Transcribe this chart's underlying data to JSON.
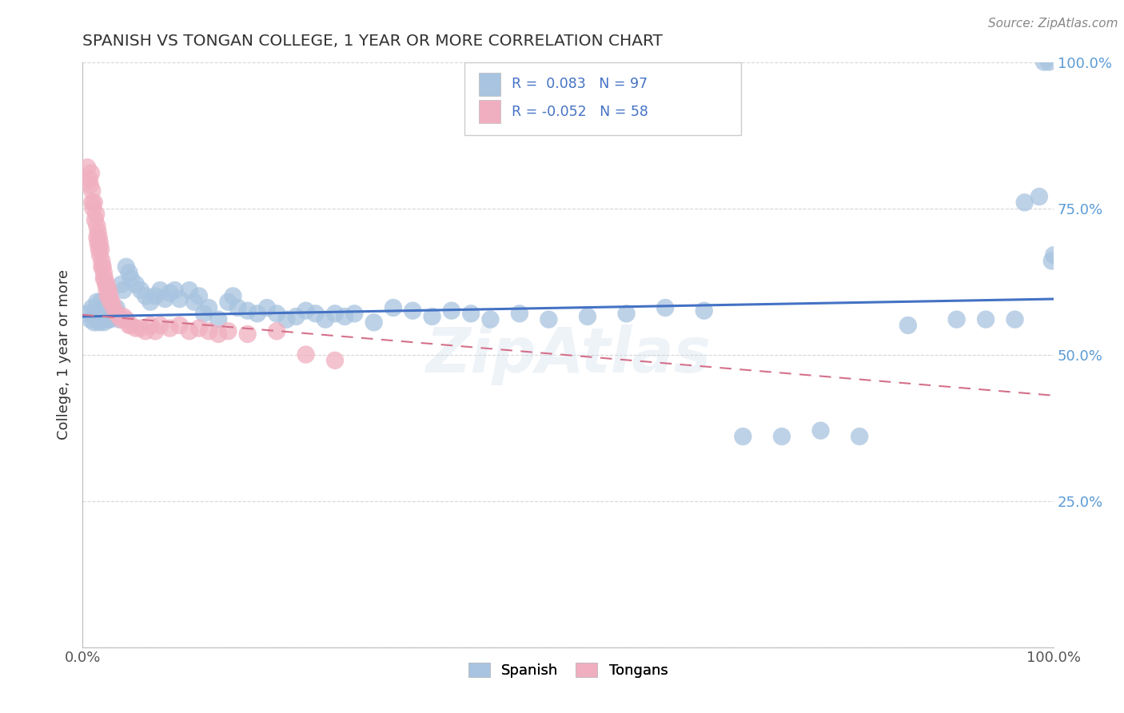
{
  "title": "SPANISH VS TONGAN COLLEGE, 1 YEAR OR MORE CORRELATION CHART",
  "source": "Source: ZipAtlas.com",
  "ylabel": "College, 1 year or more",
  "xlim": [
    0.0,
    1.0
  ],
  "ylim": [
    0.0,
    1.0
  ],
  "legend_R_spanish": "0.083",
  "legend_N_spanish": "97",
  "legend_R_tongan": "-0.052",
  "legend_N_tongan": "58",
  "spanish_color": "#a8c4e0",
  "tongan_color": "#f0afc0",
  "spanish_line_color": "#4472c4",
  "tongan_line_color": "#d4708a",
  "watermark": "ZipAtlas",
  "background_color": "#ffffff",
  "grid_color": "#cccccc",
  "tick_color": "#5b9bd5",
  "sp_line_y0": 0.565,
  "sp_line_y1": 0.595,
  "ton_line_y0": 0.568,
  "ton_line_y1": 0.43,
  "spanish_x": [
    0.005,
    0.008,
    0.01,
    0.012,
    0.013,
    0.014,
    0.015,
    0.015,
    0.016,
    0.017,
    0.018,
    0.018,
    0.019,
    0.02,
    0.02,
    0.021,
    0.022,
    0.022,
    0.023,
    0.024,
    0.025,
    0.025,
    0.026,
    0.027,
    0.028,
    0.028,
    0.029,
    0.03,
    0.031,
    0.032,
    0.033,
    0.035,
    0.036,
    0.038,
    0.04,
    0.042,
    0.045,
    0.048,
    0.05,
    0.055,
    0.06,
    0.065,
    0.07,
    0.075,
    0.08,
    0.085,
    0.09,
    0.095,
    0.1,
    0.11,
    0.115,
    0.12,
    0.125,
    0.13,
    0.14,
    0.15,
    0.155,
    0.16,
    0.17,
    0.18,
    0.19,
    0.2,
    0.21,
    0.22,
    0.23,
    0.24,
    0.25,
    0.26,
    0.27,
    0.28,
    0.3,
    0.32,
    0.34,
    0.36,
    0.38,
    0.4,
    0.42,
    0.45,
    0.48,
    0.52,
    0.56,
    0.6,
    0.64,
    0.68,
    0.72,
    0.76,
    0.8,
    0.85,
    0.9,
    0.93,
    0.96,
    0.97,
    0.985,
    0.99,
    0.995,
    0.998,
    1.0
  ],
  "spanish_y": [
    0.57,
    0.56,
    0.58,
    0.555,
    0.565,
    0.575,
    0.59,
    0.56,
    0.57,
    0.555,
    0.58,
    0.56,
    0.59,
    0.56,
    0.575,
    0.56,
    0.57,
    0.555,
    0.56,
    0.57,
    0.56,
    0.58,
    0.57,
    0.56,
    0.575,
    0.56,
    0.58,
    0.575,
    0.57,
    0.565,
    0.575,
    0.58,
    0.57,
    0.56,
    0.62,
    0.61,
    0.65,
    0.64,
    0.63,
    0.62,
    0.61,
    0.6,
    0.59,
    0.6,
    0.61,
    0.595,
    0.605,
    0.61,
    0.595,
    0.61,
    0.59,
    0.6,
    0.57,
    0.58,
    0.56,
    0.59,
    0.6,
    0.58,
    0.575,
    0.57,
    0.58,
    0.57,
    0.56,
    0.565,
    0.575,
    0.57,
    0.56,
    0.57,
    0.565,
    0.57,
    0.555,
    0.58,
    0.575,
    0.565,
    0.575,
    0.57,
    0.56,
    0.57,
    0.56,
    0.565,
    0.57,
    0.58,
    0.575,
    0.36,
    0.36,
    0.37,
    0.36,
    0.55,
    0.56,
    0.56,
    0.56,
    0.76,
    0.77,
    1.0,
    1.0,
    0.66,
    0.67
  ],
  "tongan_x": [
    0.005,
    0.007,
    0.008,
    0.009,
    0.01,
    0.01,
    0.011,
    0.012,
    0.013,
    0.014,
    0.015,
    0.015,
    0.016,
    0.016,
    0.017,
    0.017,
    0.018,
    0.018,
    0.019,
    0.02,
    0.02,
    0.021,
    0.022,
    0.022,
    0.023,
    0.024,
    0.025,
    0.025,
    0.026,
    0.027,
    0.028,
    0.029,
    0.03,
    0.032,
    0.035,
    0.038,
    0.04,
    0.042,
    0.045,
    0.048,
    0.05,
    0.055,
    0.06,
    0.065,
    0.07,
    0.075,
    0.08,
    0.09,
    0.1,
    0.11,
    0.12,
    0.13,
    0.14,
    0.15,
    0.17,
    0.2,
    0.23,
    0.26
  ],
  "tongan_y": [
    0.82,
    0.8,
    0.79,
    0.81,
    0.78,
    0.76,
    0.75,
    0.76,
    0.73,
    0.74,
    0.72,
    0.7,
    0.71,
    0.69,
    0.7,
    0.68,
    0.69,
    0.67,
    0.68,
    0.66,
    0.65,
    0.65,
    0.64,
    0.63,
    0.63,
    0.62,
    0.62,
    0.61,
    0.6,
    0.61,
    0.6,
    0.59,
    0.59,
    0.58,
    0.57,
    0.565,
    0.56,
    0.565,
    0.56,
    0.55,
    0.55,
    0.545,
    0.545,
    0.54,
    0.55,
    0.54,
    0.55,
    0.545,
    0.55,
    0.54,
    0.545,
    0.54,
    0.535,
    0.54,
    0.535,
    0.54,
    0.5,
    0.49
  ]
}
